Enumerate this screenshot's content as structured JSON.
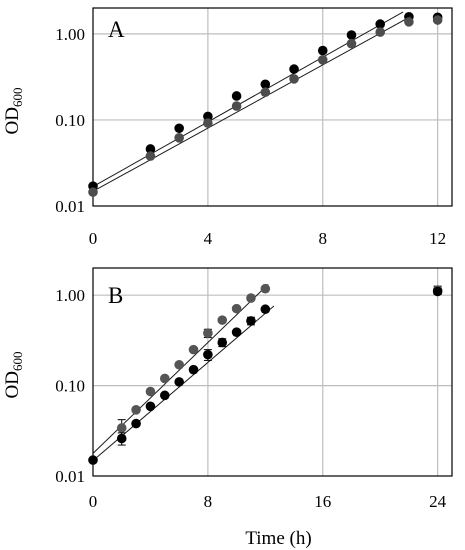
{
  "chart_data": [
    {
      "type": "scatter",
      "panel_label": "A",
      "ylabel_main": "OD",
      "ylabel_sub": "600",
      "xlim": [
        0,
        12.5
      ],
      "ylim": [
        0.01,
        2.0
      ],
      "yscale": "log",
      "grid": true,
      "xticks": [
        0,
        4,
        8,
        12
      ],
      "xtick_labels": [
        "0",
        "4",
        "8",
        "12"
      ],
      "yticks": [
        0.01,
        0.1,
        1.0
      ],
      "ytick_labels": [
        "0.01",
        "0.10",
        "1.00"
      ],
      "series": [
        {
          "color": "#000000",
          "x": [
            0,
            2,
            3,
            4,
            5,
            6,
            7,
            8,
            9,
            10,
            11,
            12
          ],
          "y": [
            0.017,
            0.046,
            0.08,
            0.11,
            0.19,
            0.26,
            0.39,
            0.64,
            0.97,
            1.3,
            1.58,
            1.56
          ],
          "fit": {
            "x": [
              0,
              10.8
            ],
            "y": [
              0.0168,
              1.8
            ]
          }
        },
        {
          "color": "#4d4d4d",
          "x": [
            0,
            2,
            3,
            4,
            5,
            6,
            7,
            8,
            9,
            10,
            11,
            12
          ],
          "y": [
            0.0145,
            0.038,
            0.062,
            0.092,
            0.145,
            0.21,
            0.3,
            0.5,
            0.77,
            1.05,
            1.38,
            1.45
          ],
          "fit": {
            "x": [
              0,
              11.1
            ],
            "y": [
              0.0148,
              1.62
            ]
          }
        }
      ]
    },
    {
      "type": "scatter",
      "panel_label": "B",
      "xlabel": "Time (h)",
      "ylabel_main": "OD",
      "ylabel_sub": "600",
      "xlim": [
        0,
        25
      ],
      "ylim": [
        0.01,
        2.0
      ],
      "yscale": "log",
      "grid": true,
      "xticks": [
        0,
        8,
        16,
        24
      ],
      "xtick_labels": [
        "0",
        "8",
        "16",
        "24"
      ],
      "yticks": [
        0.01,
        0.1,
        1.0
      ],
      "ytick_labels": [
        "0.01",
        "0.10",
        "1.00"
      ],
      "series": [
        {
          "color": "#555555",
          "x": [
            2,
            3,
            4,
            5,
            6,
            7,
            8,
            9,
            10,
            11,
            12,
            24
          ],
          "y": [
            0.034,
            0.054,
            0.086,
            0.12,
            0.17,
            0.25,
            0.38,
            0.53,
            0.71,
            0.93,
            1.18,
            1.14
          ],
          "err": [
            0.008,
            0,
            0,
            0,
            0,
            0,
            0.04,
            0,
            0,
            0,
            0,
            0.12
          ],
          "fit": {
            "x": [
              0,
              12.2
            ],
            "y": [
              0.0178,
              1.32
            ]
          }
        },
        {
          "color": "#000000",
          "x": [
            0,
            2,
            3,
            4,
            5,
            6,
            7,
            8,
            9,
            10,
            11,
            12,
            24
          ],
          "y": [
            0.015,
            0.026,
            0.038,
            0.059,
            0.078,
            0.11,
            0.15,
            0.22,
            0.3,
            0.39,
            0.52,
            0.7,
            1.1
          ],
          "err": [
            0,
            0.004,
            0,
            0,
            0,
            0,
            0,
            0.03,
            0.03,
            0,
            0.05,
            0,
            0
          ],
          "fit": {
            "x": [
              0,
              12.6
            ],
            "y": [
              0.0148,
              0.76
            ]
          }
        }
      ]
    }
  ]
}
